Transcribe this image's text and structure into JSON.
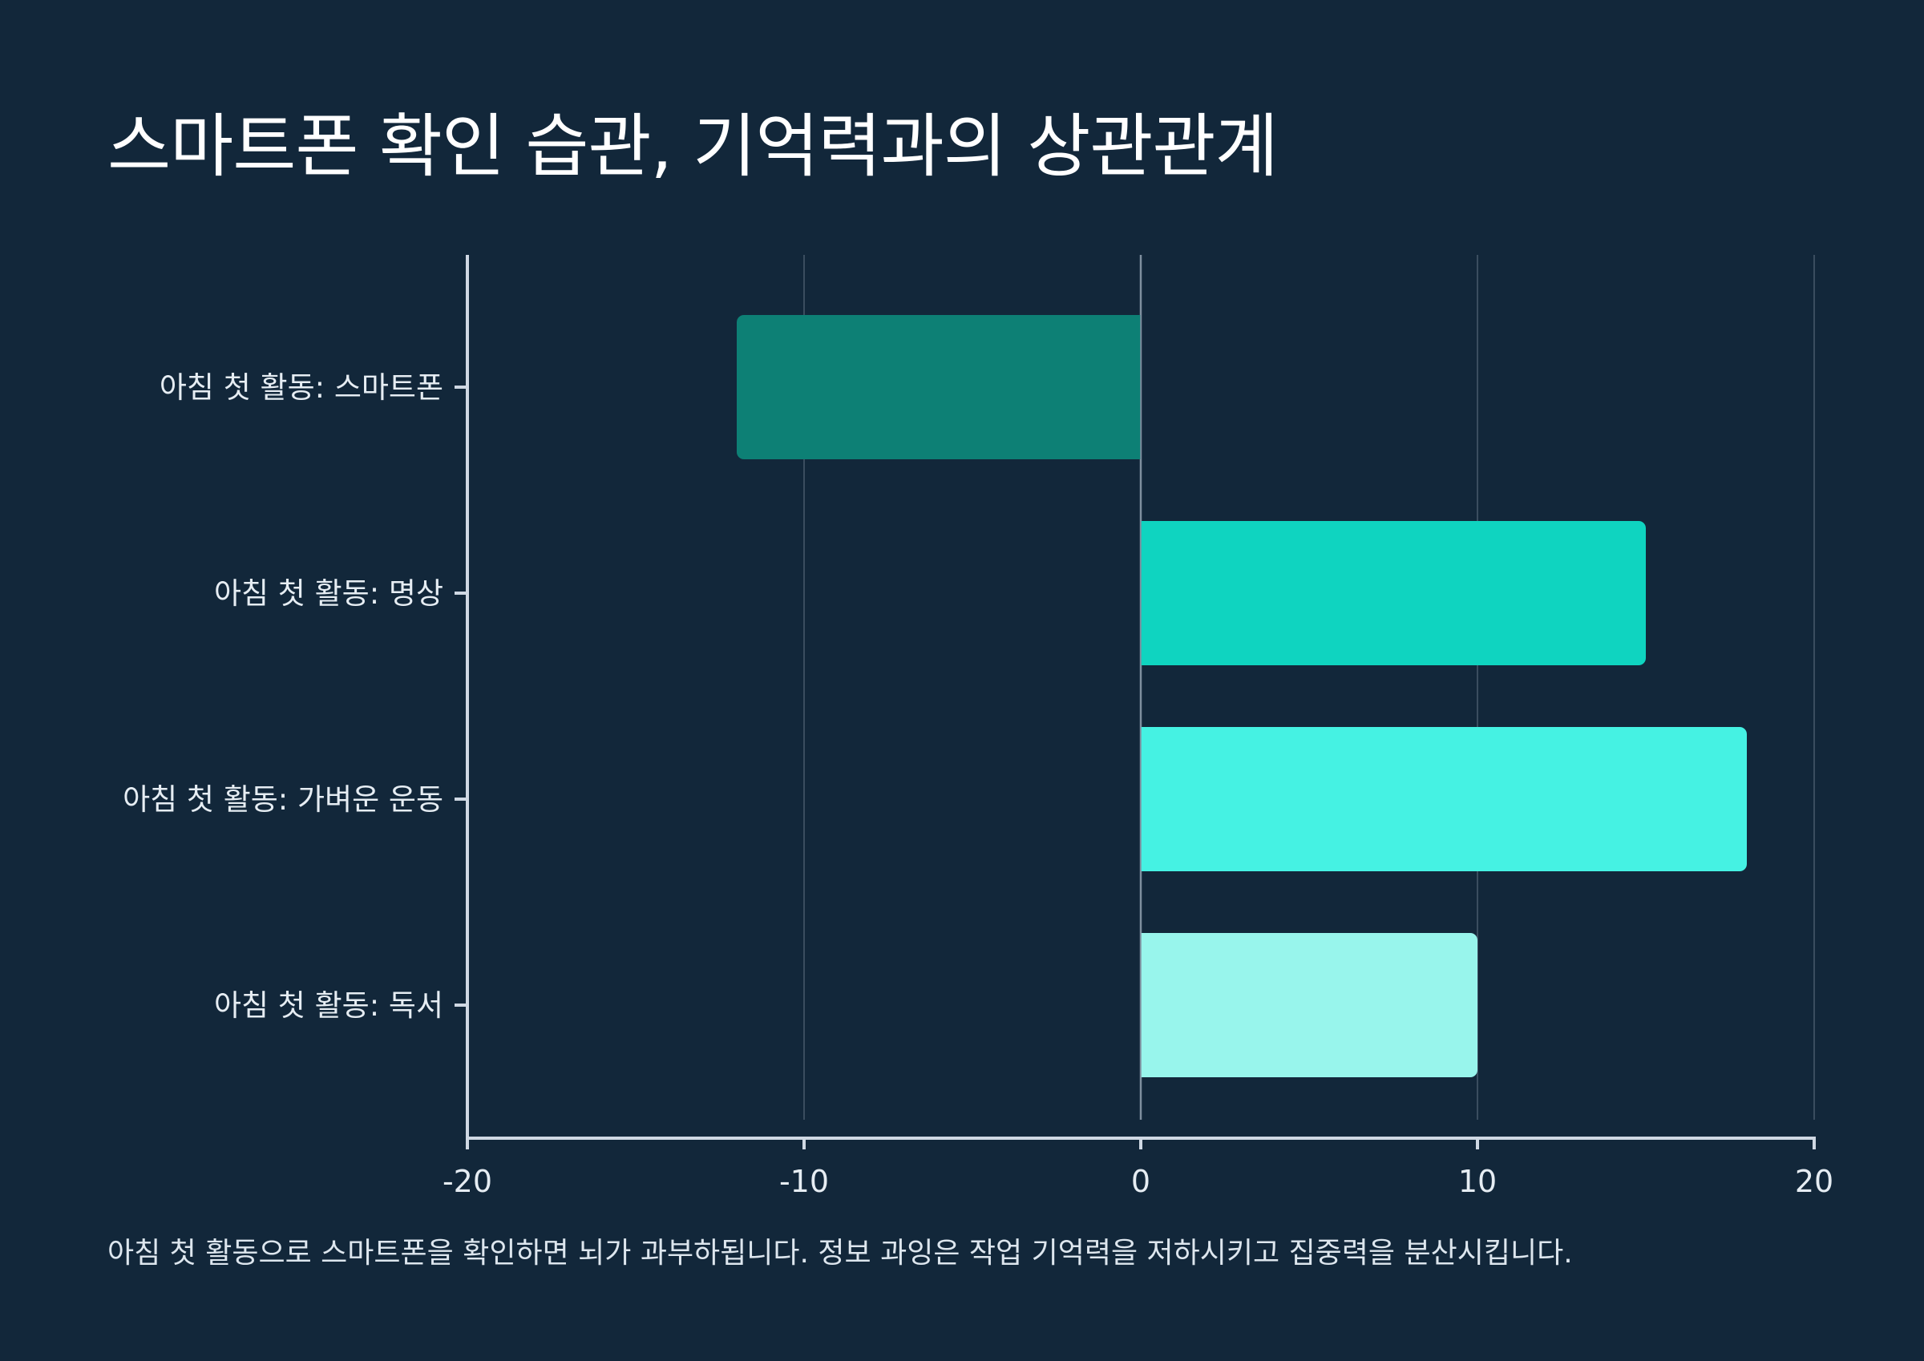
{
  "chart_data": {
    "type": "bar",
    "orientation": "horizontal",
    "title": "스마트폰 확인 습관, 기억력과의 상관관계",
    "categories": [
      "아침 첫 활동: 스마트폰",
      "아침 첫 활동: 명상",
      "아침 첫 활동: 가벼운 운동",
      "아침 첫 활동: 독서"
    ],
    "values": [
      -12,
      15,
      18,
      10
    ],
    "colors": [
      "#0d8075",
      "#0fd4c0",
      "#45f2e3",
      "#98f5ec"
    ],
    "xlim": [
      -20,
      20
    ],
    "xticks": [
      "-20",
      "-10",
      "0",
      "10",
      "20"
    ],
    "xtick_values": [
      -20,
      -10,
      0,
      10,
      20
    ],
    "grid": true,
    "xlabel": "",
    "ylabel": "",
    "caption": "아침 첫 활동으로 스마트폰을 확인하면 뇌가 과부하됩니다. 정보 과잉은 작업 기억력을 저하시키고 집중력을 분산시킵니다."
  },
  "theme": {
    "background": "#12273a",
    "text": "#ffffff",
    "axis": "#cfd8e3",
    "grid": "#3a4d5f",
    "zero_line": "#7f8f9f"
  }
}
